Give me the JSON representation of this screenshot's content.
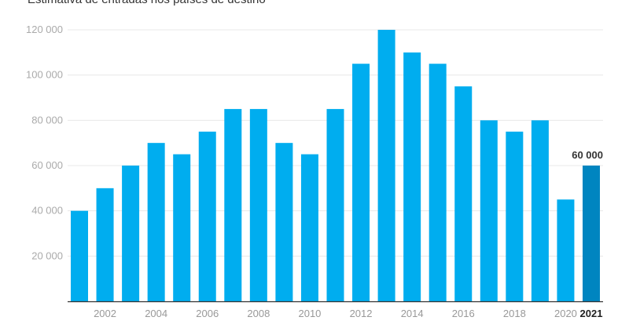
{
  "chart_data": {
    "type": "bar",
    "title": "Estimativa de entradas nos países de destino",
    "xlabel": "",
    "ylabel": "",
    "ylim": [
      0,
      120000
    ],
    "yticks": [
      20000,
      40000,
      60000,
      80000,
      100000,
      120000
    ],
    "ytick_labels": [
      "20 000",
      "40 000",
      "60 000",
      "80 000",
      "100 000",
      "120 000"
    ],
    "grid": true,
    "categories": [
      "2001",
      "2002",
      "2003",
      "2004",
      "2005",
      "2006",
      "2007",
      "2008",
      "2009",
      "2010",
      "2011",
      "2012",
      "2013",
      "2014",
      "2015",
      "2016",
      "2017",
      "2018",
      "2019",
      "2020",
      "2021"
    ],
    "xtick_labels": [
      "2002",
      "2004",
      "2006",
      "2008",
      "2010",
      "2012",
      "2014",
      "2016",
      "2018",
      "2020",
      "2021"
    ],
    "values": [
      40000,
      50000,
      60000,
      70000,
      65000,
      75000,
      85000,
      85000,
      70000,
      65000,
      85000,
      105000,
      120000,
      110000,
      105000,
      95000,
      80000,
      75000,
      80000,
      45000,
      60000
    ],
    "highlight": {
      "category": "2021",
      "label": "60 000"
    },
    "colors": {
      "bar": "#00adef",
      "highlight": "#0085c0",
      "grid": "#e8e8e8",
      "axis": "#333333"
    }
  }
}
